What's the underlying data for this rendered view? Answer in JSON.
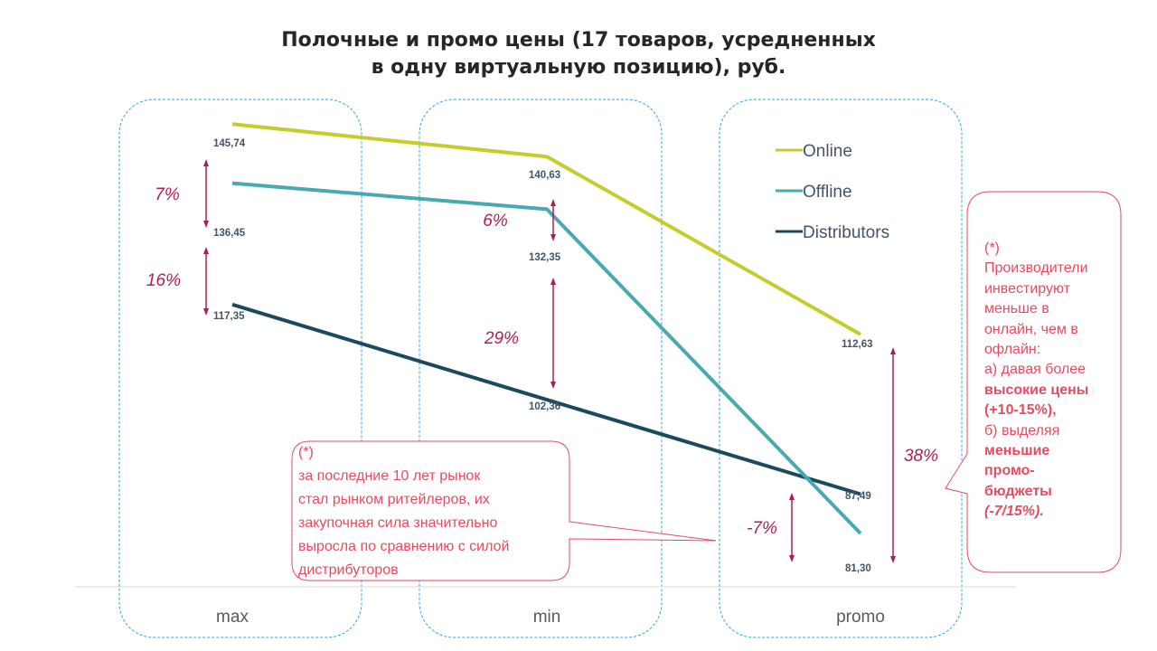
{
  "title": {
    "line1": "Полочные и промо цены (17 товаров, усредненных",
    "line2": "в одну виртуальную позицию), руб."
  },
  "chart_data": {
    "type": "line",
    "categories": [
      "max",
      "min",
      "promo"
    ],
    "ylim": [
      70,
      150
    ],
    "grid": false,
    "legend_position": "right, inside promo group",
    "series": [
      {
        "name": "Online",
        "color": "#c5cc2c",
        "values": [
          145.74,
          140.63,
          112.63
        ],
        "labels": [
          "145,74",
          "140,63",
          "112,63"
        ]
      },
      {
        "name": "Offline",
        "color": "#47aab0",
        "values": [
          136.45,
          132.35,
          81.3
        ],
        "labels": [
          "136,45",
          "132,35",
          "81,30"
        ]
      },
      {
        "name": "Distributors",
        "color": "#1b4a5f",
        "values": [
          117.35,
          102.36,
          87.49
        ],
        "labels": [
          "117,35",
          "102,36",
          "87,49"
        ]
      }
    ],
    "annotations": [
      {
        "text": "7%",
        "category": "max",
        "from": 145.74,
        "to": 136.45
      },
      {
        "text": "16%",
        "category": "max",
        "from": 136.45,
        "to": 117.35
      },
      {
        "text": "6%",
        "category": "min",
        "from": 140.63,
        "to": 132.35
      },
      {
        "text": "29%",
        "category": "min",
        "from": 132.35,
        "to": 102.36
      },
      {
        "text": "38%",
        "category": "promo",
        "from": 112.63,
        "to": 81.3
      },
      {
        "text": "-7%",
        "category": "promo",
        "from": 87.49,
        "to": 81.3
      }
    ],
    "colors": {
      "annotation": "#b01e4f",
      "callout": "#e84a5f",
      "frame": "#2ea6dc",
      "axis_label": "#595959",
      "data_label": "#44546a"
    }
  },
  "callouts": {
    "right": {
      "mark": "(*)",
      "l1": "Производители",
      "l2": "инвестируют",
      "l3": "меньше в",
      "l4": "онлайн, чем в",
      "l5": "офлайн:",
      "l6": "а) давая  более",
      "l7": "высокие цены",
      "l8": "(+10-15%),",
      "l9": "б) выделяя",
      "l10": "меньшие",
      "l11": "промо-",
      "l12": "бюджеты",
      "l13": "(-7/15%)."
    },
    "bottom": {
      "mark": "(*)",
      "l1": "за последние  10 лет рынок",
      "l2": "стал рынком ритейлеров,  их",
      "l3": "закупочная сила значительно",
      "l4": "выросла по сравнению  с силой",
      "l5": "дистрибуторов"
    }
  }
}
